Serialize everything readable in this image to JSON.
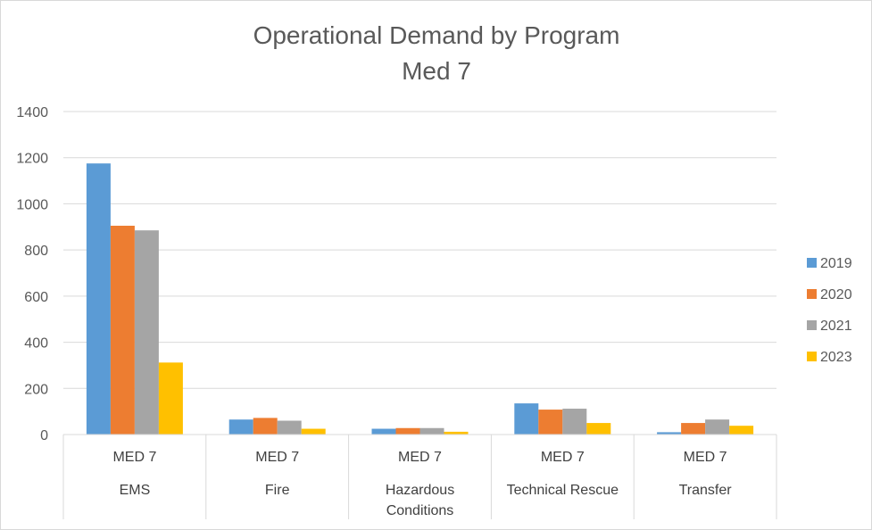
{
  "chart_data": {
    "type": "bar",
    "title": "Operational Demand by Program",
    "subtitle": "Med 7",
    "ylim": [
      0,
      1400
    ],
    "yticks": [
      0,
      200,
      400,
      600,
      800,
      1000,
      1200,
      1400
    ],
    "grid": true,
    "legend_position": "right",
    "categories": [
      {
        "unit": "MED 7",
        "program": [
          "EMS"
        ]
      },
      {
        "unit": "MED 7",
        "program": [
          "Fire"
        ]
      },
      {
        "unit": "MED 7",
        "program": [
          "Hazardous",
          "Conditions"
        ]
      },
      {
        "unit": "MED 7",
        "program": [
          "Technical Rescue"
        ]
      },
      {
        "unit": "MED 7",
        "program": [
          "Transfer"
        ]
      }
    ],
    "series": [
      {
        "name": "2019",
        "color": "#5b9bd5",
        "values": [
          1175,
          65,
          25,
          135,
          10
        ]
      },
      {
        "name": "2020",
        "color": "#ed7d31",
        "values": [
          905,
          72,
          28,
          108,
          50
        ]
      },
      {
        "name": "2021",
        "color": "#a5a5a5",
        "values": [
          885,
          60,
          28,
          112,
          65
        ]
      },
      {
        "name": "2023",
        "color": "#ffc000",
        "values": [
          312,
          25,
          12,
          50,
          38
        ]
      }
    ]
  }
}
